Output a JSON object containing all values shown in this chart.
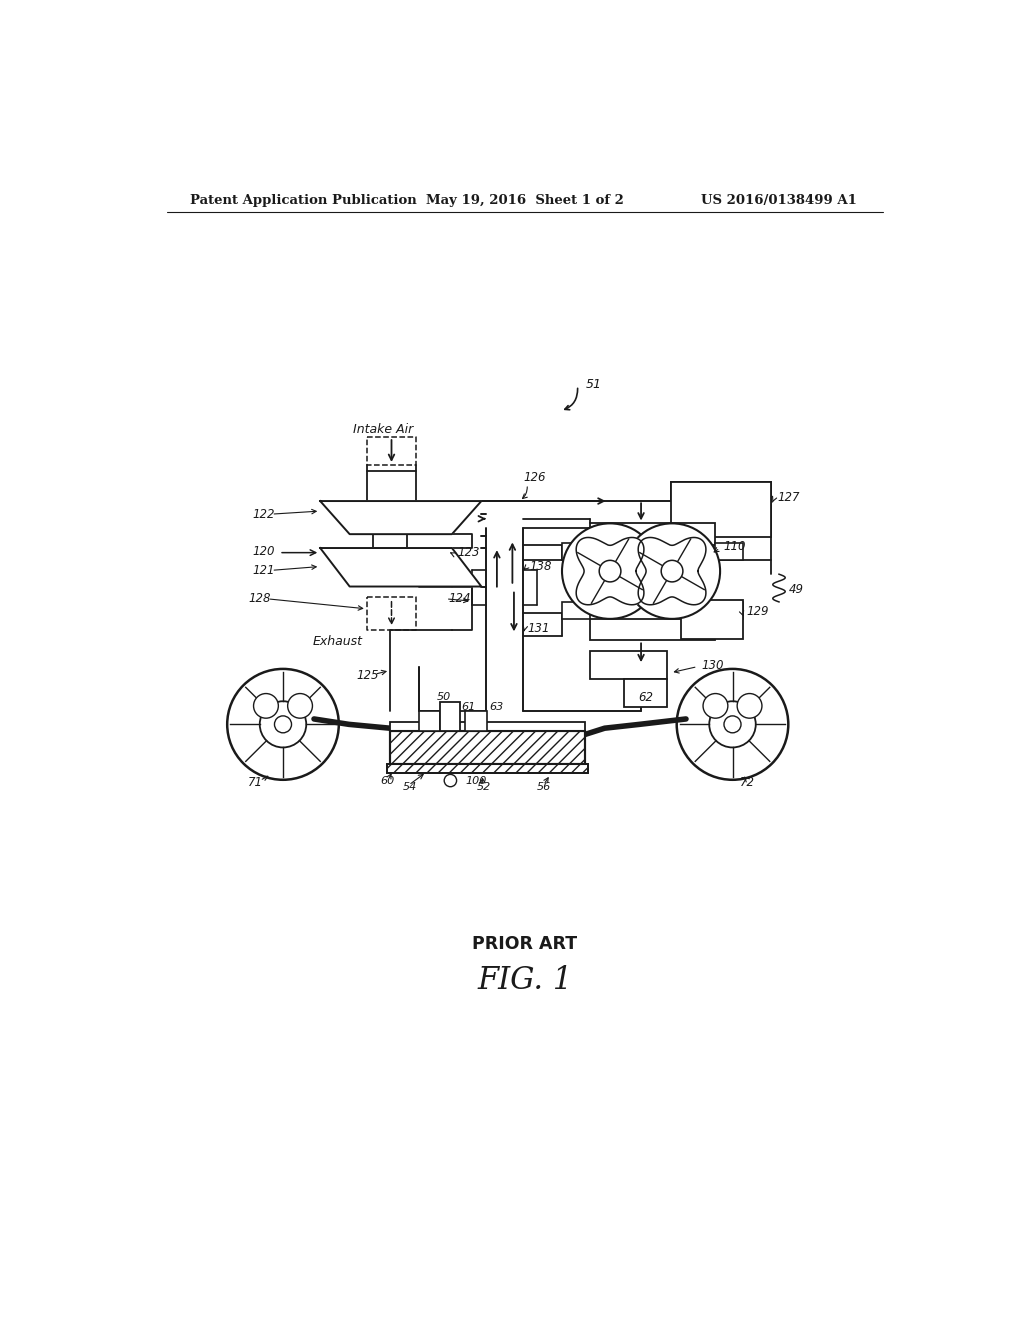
{
  "bg_color": "#ffffff",
  "line_color": "#1a1a1a",
  "header_left": "Patent Application Publication",
  "header_mid": "May 19, 2016  Sheet 1 of 2",
  "header_right": "US 2016/0138499 A1",
  "footer_label1": "PRIOR ART",
  "footer_label2": "FIG. 1",
  "figsize": [
    10.24,
    13.2
  ],
  "dpi": 100
}
